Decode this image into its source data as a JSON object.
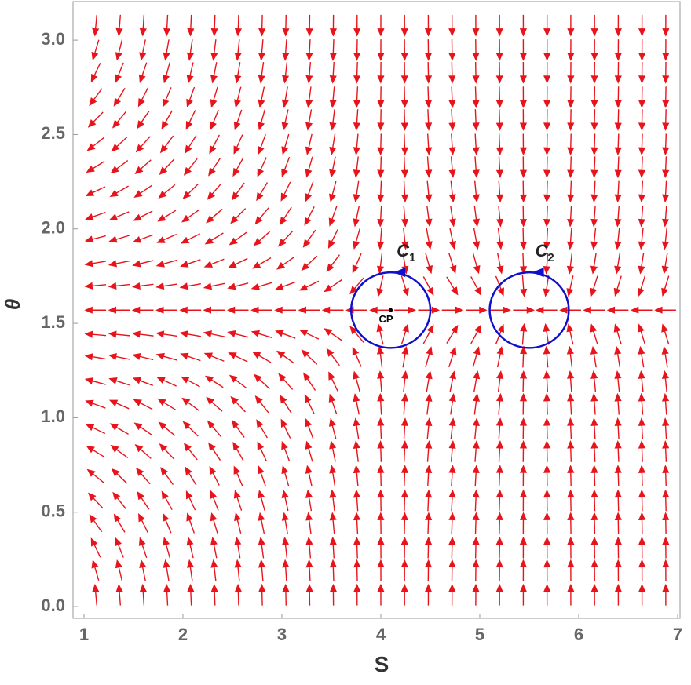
{
  "chart_data": {
    "type": "vector_field",
    "xlabel": "S",
    "ylabel": "θ",
    "xlim": [
      0.889,
      7.024
    ],
    "ylim": [
      -0.062,
      3.204
    ],
    "xticks": [
      1,
      2,
      3,
      4,
      5,
      6,
      7
    ],
    "yticks": [
      {
        "value": 0,
        "label": "0.0"
      },
      {
        "value": 0.5,
        "label": "0.5"
      },
      {
        "value": 1,
        "label": "1.0"
      },
      {
        "value": 1.5,
        "label": "1.5"
      },
      {
        "value": 2,
        "label": "2.0"
      },
      {
        "value": 2.5,
        "label": "2.5"
      },
      {
        "value": 3,
        "label": "3.0"
      }
    ],
    "field": {
      "color": "#e8141c",
      "x": [
        1.12,
        1.36,
        1.6,
        1.84,
        2.08,
        2.32,
        2.56,
        2.8,
        3.04,
        3.28,
        3.52,
        3.76,
        4.0,
        4.24,
        4.48,
        4.72,
        4.96,
        5.2,
        5.44,
        5.68,
        5.92,
        6.16,
        6.4,
        6.64,
        6.88
      ],
      "y": [
        0.06,
        0.19,
        0.31,
        0.44,
        0.56,
        0.69,
        0.82,
        0.94,
        1.07,
        1.19,
        1.32,
        1.44,
        1.57,
        1.7,
        1.82,
        1.95,
        2.07,
        2.2,
        2.33,
        2.45,
        2.58,
        2.7,
        2.83,
        2.95,
        3.08
      ],
      "u": [
        -1.5,
        -1.25,
        -1.05,
        -0.88,
        -0.74,
        -0.62,
        -0.52,
        -0.43,
        -0.35,
        -0.27,
        -0.19,
        -0.11,
        -0.03,
        0.04,
        0.07,
        0.08,
        0.07,
        0.05,
        0.01,
        -0.02,
        -0.03,
        -0.04,
        -0.04,
        -0.04,
        -0.04
      ],
      "v": [
        16.65,
        5.2,
        3.12,
        2.12,
        1.59,
        1.21,
        0.93,
        0.73,
        0.55,
        0.4,
        0.25,
        0.13,
        0,
        -0.13,
        -0.25,
        -0.38,
        -0.53,
        -0.72,
        -0.93,
        -1.17,
        -1.53,
        -2.04,
        -3.16,
        -5.01,
        -16.4
      ]
    },
    "contours": [
      {
        "label": "C",
        "subscript": "1",
        "color": "#1010cc",
        "center": [
          4.1,
          1.57
        ],
        "radii": [
          0.4,
          0.2
        ]
      },
      {
        "label": "C",
        "subscript": "2",
        "color": "#1010cc",
        "center": [
          5.5,
          1.57
        ],
        "radii": [
          0.4,
          0.2
        ]
      }
    ],
    "points": [
      {
        "label": "CP",
        "x": 4.1,
        "y": 1.57
      }
    ]
  }
}
